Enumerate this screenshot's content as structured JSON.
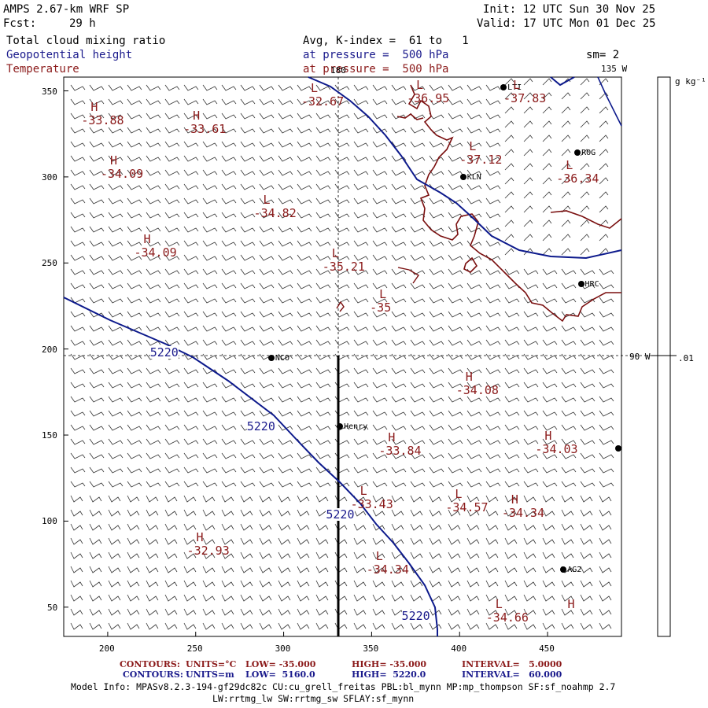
{
  "header": {
    "model": "AMPS 2.67-km WRF SP",
    "fcst_label": "Fcst:",
    "fcst_value": "29 h",
    "init": "Init: 12 UTC Sun 30 Nov 25",
    "valid": "Valid: 17 UTC Mon 01 Dec 25",
    "field1": "Total cloud mixing ratio",
    "field2": "Geopotential height",
    "field3": "Temperature",
    "avg": "Avg, K-index =  61 to   1",
    "pressure1": "at pressure =  500 hPa",
    "pressure2": "at pressure =  500 hPa",
    "smoothing": "sm= 2"
  },
  "axes": {
    "x_ticks": [
      "200",
      "250",
      "300",
      "350",
      "400",
      "450"
    ],
    "y_ticks": [
      "350",
      "300",
      "250",
      "200",
      "150",
      "100",
      "50"
    ],
    "top_label": "180",
    "right_label_top": "135 W",
    "right_label_mid": "90 W"
  },
  "colorbar": {
    "unit": "g kg⁻¹",
    "value": ".01"
  },
  "stations": [
    {
      "name": "NCO",
      "x": 293,
      "y": 195
    },
    {
      "name": "Henry",
      "x": 332,
      "y": 155
    },
    {
      "name": "KLN",
      "x": 402,
      "y": 300
    },
    {
      "name": "ROG",
      "x": 467,
      "y": 314
    },
    {
      "name": "HRC",
      "x": 469,
      "y": 238
    },
    {
      "name": "AG2",
      "x": 459,
      "y": 72
    },
    {
      "name": "LTI",
      "x": 425,
      "y": 352
    }
  ],
  "temp_labels": [
    {
      "type": "H",
      "value": "-33.88",
      "x": 185,
      "y": 337
    },
    {
      "type": "H",
      "value": "-33.61",
      "x": 243,
      "y": 332
    },
    {
      "type": "L",
      "value": "-32.67",
      "x": 310,
      "y": 348
    },
    {
      "type": "L",
      "value": "-36.95",
      "x": 370,
      "y": 350
    },
    {
      "type": "L",
      "value": "-37.83",
      "x": 425,
      "y": 350
    },
    {
      "type": "H",
      "value": "-34.09",
      "x": 196,
      "y": 306
    },
    {
      "type": "L",
      "value": "-37.12",
      "x": 400,
      "y": 314
    },
    {
      "type": "L",
      "value": "-36.34",
      "x": 455,
      "y": 303
    },
    {
      "type": "L",
      "value": "-34.82",
      "x": 283,
      "y": 283
    },
    {
      "type": "H",
      "value": "-34.09",
      "x": 215,
      "y": 260
    },
    {
      "type": "L",
      "value": "-35.21",
      "x": 322,
      "y": 252
    },
    {
      "type": "L",
      "value": "-35",
      "x": 349,
      "y": 228
    },
    {
      "type": "H",
      "value": "-34.08",
      "x": 398,
      "y": 180
    },
    {
      "type": "H",
      "value": "-34.03",
      "x": 443,
      "y": 146
    },
    {
      "type": "H",
      "value": "-33.84",
      "x": 354,
      "y": 145
    },
    {
      "type": "L",
      "value": "-33.43",
      "x": 338,
      "y": 114
    },
    {
      "type": "L",
      "value": "-34.57",
      "x": 392,
      "y": 112
    },
    {
      "type": "H",
      "value": "-34.34",
      "x": 424,
      "y": 109
    },
    {
      "type": "H",
      "value": "-32.93",
      "x": 245,
      "y": 87
    },
    {
      "type": "L",
      "value": "-34.34",
      "x": 347,
      "y": 76
    },
    {
      "type": "L",
      "value": "-34.66",
      "x": 415,
      "y": 48
    },
    {
      "type": "H",
      "value": "",
      "x": 456,
      "y": 48
    }
  ],
  "height_labels": [
    {
      "value": "5220",
      "x": 233,
      "y": 198
    },
    {
      "value": "5220",
      "x": 288,
      "y": 155
    },
    {
      "value": "5220",
      "x": 333,
      "y": 104
    },
    {
      "value": "5220",
      "x": 376,
      "y": 45
    }
  ],
  "footer": {
    "contours_temp_label": "CONTOURS:",
    "contours_temp_units": "UNITS=°C",
    "contours_temp_low": "LOW= -35.000",
    "contours_temp_high": "HIGH= -35.000",
    "contours_temp_interval": "INTERVAL=   5.0000",
    "contours_hgt_label": "CONTOURS:",
    "contours_hgt_units": "UNITS=m",
    "contours_hgt_low": "LOW=  5160.0",
    "contours_hgt_high": "HIGH=  5220.0",
    "contours_hgt_interval": "INTERVAL=   60.000",
    "model_info": "Model Info: MPASv8.2.3-194-gf29dc82c CU:cu_grell_freitas PBL:bl_mynn MP:mp_thompson SF:sf_noahmp 2.7",
    "model_info2": "LW:rrtmg_lw SW:rrtmg_sw SFLAY:sf_mynn"
  },
  "colors": {
    "height_contour": "#0d1a8c",
    "temp_contour": "#8b1a1a",
    "coast": "#7a0f0f"
  }
}
